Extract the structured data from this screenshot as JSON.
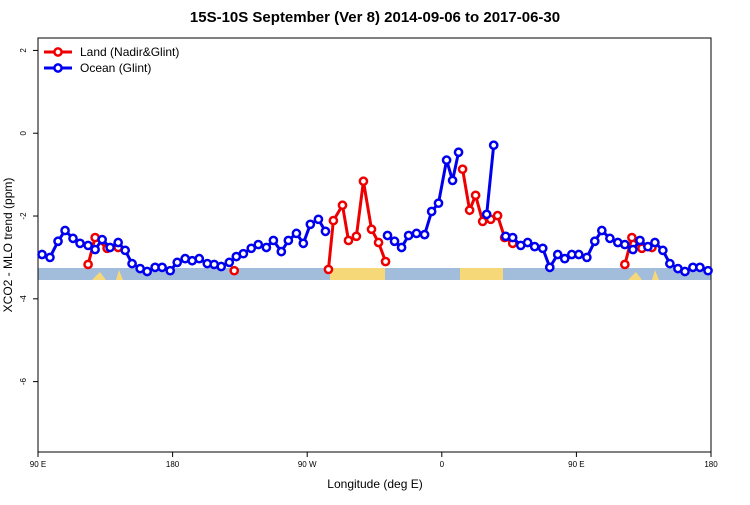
{
  "chart_data": {
    "type": "line",
    "title": "15S-10S September (Ver 8)   2014-09-06 to 2017-06-30",
    "xlabel": "Longitude (deg E)",
    "ylabel": "XCO2 - MLO trend (ppm)",
    "xlim": [
      90,
      540
    ],
    "ylim": [
      -7.7,
      2.3
    ],
    "xticks": [
      {
        "value": 90,
        "label": "90 E"
      },
      {
        "value": 180,
        "label": "180"
      },
      {
        "value": 270,
        "label": "90 W"
      },
      {
        "value": 360,
        "label": "0"
      },
      {
        "value": 450,
        "label": "90 E"
      },
      {
        "value": 540,
        "label": "180"
      }
    ],
    "yticks": [
      2,
      0,
      -2,
      -4,
      -6
    ],
    "legend": "top-left",
    "series": [
      {
        "name": "Land (Nadir&Glint)",
        "color": "#ee0000",
        "x": [
          123.5,
          128.2,
          136.2,
          143.6,
          null,
          221.2,
          null,
          284.2,
          287.5,
          293.6,
          297.6,
          302.9,
          307.6,
          313.0,
          317.7,
          322.4,
          null,
          373.9,
          378.6,
          382.6,
          387.3,
          392.7,
          397.3,
          402.0,
          407.4,
          null,
          482.4,
          487.1,
          493.8,
          500.5
        ],
        "values": [
          -3.17,
          -2.52,
          -2.78,
          -2.76,
          null,
          -3.32,
          null,
          -3.29,
          -2.11,
          -1.74,
          -2.59,
          -2.49,
          -1.16,
          -2.32,
          -2.64,
          -3.1,
          null,
          -0.87,
          -1.86,
          -1.5,
          -2.13,
          -2.08,
          -1.99,
          -2.52,
          -2.66,
          null,
          -3.17,
          -2.52,
          -2.78,
          -2.76
        ]
      },
      {
        "name": "Ocean (Glint)",
        "color": "#0000ee",
        "x": [
          92.7,
          98.0,
          103.4,
          108.1,
          113.4,
          118.1,
          123.5,
          128.2,
          132.9,
          138.2,
          143.6,
          148.3,
          152.9,
          158.3,
          163.0,
          168.3,
          173.0,
          178.4,
          183.1,
          188.4,
          193.1,
          197.8,
          203.2,
          207.8,
          212.5,
          217.9,
          222.6,
          227.3,
          232.6,
          237.3,
          242.7,
          247.4,
          252.7,
          257.4,
          262.8,
          267.4,
          272.1,
          277.5,
          282.2,
          null,
          323.7,
          328.4,
          333.1,
          337.8,
          343.1,
          348.5,
          353.2,
          357.8,
          363.2,
          367.2,
          371.2,
          null,
          390.0,
          394.7,
          null,
          402.7,
          407.4,
          412.8,
          417.4,
          422.1,
          427.5,
          432.2,
          437.5,
          442.2,
          446.9,
          451.6,
          457.0,
          462.3,
          467.0,
          472.4,
          477.7,
          482.4,
          487.8,
          492.5,
          497.8,
          502.5,
          507.8,
          512.5,
          517.9,
          522.6,
          527.9,
          532.6,
          538.0
        ],
        "values": [
          -2.93,
          -3.0,
          -2.61,
          -2.35,
          -2.54,
          -2.66,
          -2.71,
          -2.81,
          -2.57,
          -2.76,
          -2.64,
          -2.83,
          -3.15,
          -3.27,
          -3.34,
          -3.24,
          -3.24,
          -3.32,
          -3.12,
          -3.03,
          -3.08,
          -3.03,
          -3.15,
          -3.17,
          -3.22,
          -3.12,
          -2.98,
          -2.91,
          -2.78,
          -2.69,
          -2.76,
          -2.59,
          -2.86,
          -2.59,
          -2.42,
          -2.66,
          -2.2,
          -2.08,
          -2.37,
          null,
          -2.47,
          -2.61,
          -2.76,
          -2.47,
          -2.42,
          -2.45,
          -1.89,
          -1.69,
          -0.65,
          -1.14,
          -0.46,
          null,
          -1.96,
          -0.29,
          null,
          -2.49,
          -2.52,
          -2.71,
          -2.64,
          -2.74,
          -2.78,
          -3.24,
          -2.93,
          -3.03,
          -2.93,
          -2.93,
          -3.0,
          -2.61,
          -2.35,
          -2.54,
          -2.64,
          -2.69,
          -2.81,
          -2.59,
          -2.74,
          -2.64,
          -2.83,
          -3.15,
          -3.27,
          -3.34,
          -3.24,
          -3.24,
          -3.32
        ]
      }
    ]
  }
}
